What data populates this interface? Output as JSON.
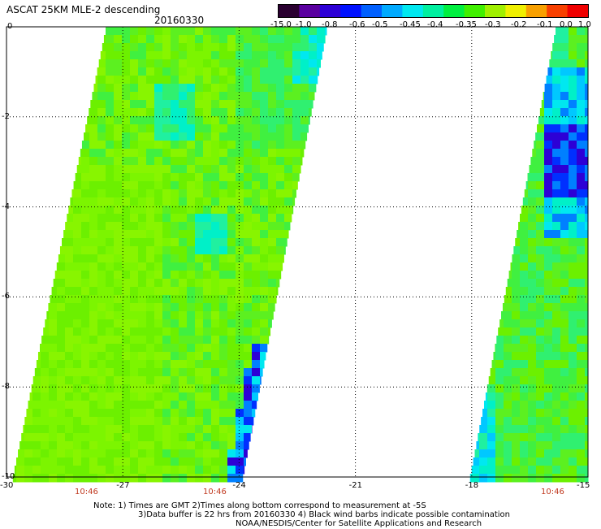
{
  "header": {
    "title": "ASCAT 25KM MLE-2 descending",
    "date": "20160330"
  },
  "colorbar": {
    "labels": [
      "-15.0",
      "-1.0",
      "-0.8",
      "-0.6",
      "-0.5",
      "-0.45",
      "-0.4",
      "-0.35",
      "-0.3",
      "-0.2",
      "-0.1",
      "0.0",
      "1.0"
    ],
    "colors": [
      "#2a0030",
      "#5a00a0",
      "#2d00d6",
      "#0011ff",
      "#0060ff",
      "#00aaff",
      "#00e8f0",
      "#00f0a0",
      "#00f040",
      "#40f000",
      "#a0f000",
      "#f0f000",
      "#f8a000",
      "#f84000",
      "#f00000"
    ]
  },
  "axes": {
    "x_ticks": [
      "-30",
      "-27",
      "-24",
      "-21",
      "-18",
      "-15"
    ],
    "y_ticks": [
      "0",
      "-2",
      "-4",
      "-6",
      "-8",
      "-10"
    ],
    "times": [
      "10:46",
      "10:46",
      "10:46"
    ]
  },
  "notes": {
    "line1": "Note: 1) Times are GMT 2)Times along bottom correspond to measurement at -5S",
    "line2": "3)Data buffer is 22 hrs from 20160330 4) Black wind barbs indicate possible contamination",
    "line3": "NOAA/NESDIS/Center for Satellite Applications and Research"
  },
  "map_data": {
    "lon_range": [
      -30,
      -15
    ],
    "lat_range": [
      -10,
      0
    ],
    "swaths": [
      {
        "name": "swath-west",
        "base_color": "#7cf500"
      },
      {
        "name": "swath-east",
        "base_color": "#5cf020"
      }
    ]
  }
}
